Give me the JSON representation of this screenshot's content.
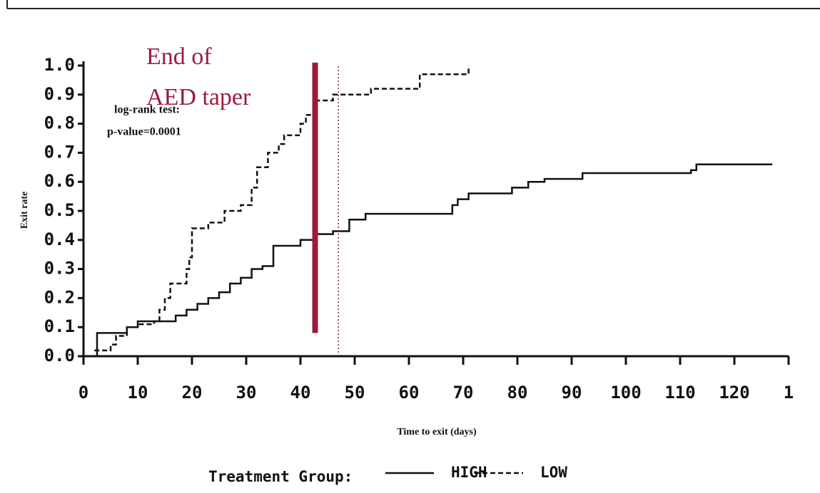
{
  "chart_data": {
    "type": "step",
    "y_label": "Exit rate",
    "x_label": "Time to exit (days)",
    "legend_title": "Treatment Group:",
    "xlim": [
      0,
      130
    ],
    "ylim": [
      0,
      1
    ],
    "xticks": [
      0,
      10,
      20,
      30,
      40,
      50,
      60,
      70,
      80,
      90,
      100,
      110,
      120,
      {
        "value": 130,
        "label": "1"
      }
    ],
    "yticks": [
      {
        "value": 0,
        "label": "0.0"
      },
      0.1,
      0.2,
      0.3,
      0.4,
      0.5,
      0.6,
      0.7,
      0.8,
      0.9,
      {
        "value": 1,
        "label": "1.0"
      }
    ],
    "annotations": [
      "log-rank test:",
      "p-value=0.0001"
    ],
    "marker_label": [
      "End of",
      "AED taper"
    ],
    "vlines": [
      {
        "x": 42.7,
        "y": [
          0.08,
          1.01
        ],
        "color": "#9b1b3e",
        "style": "solid"
      },
      {
        "x": 47,
        "y": [
          0.0,
          1.0
        ],
        "color": "#9b1b3e",
        "style": "dotted"
      }
    ],
    "series": [
      {
        "name": "HIGH",
        "color": "#111111",
        "style": "solid",
        "x": [
          2,
          2.5,
          8,
          10,
          17,
          19,
          21,
          23,
          25,
          27,
          29,
          31,
          33,
          35,
          40,
          43,
          46,
          49,
          52,
          68,
          69,
          71,
          79,
          82,
          85,
          92,
          112,
          113,
          127
        ],
        "values": [
          0.0,
          0.08,
          0.1,
          0.12,
          0.14,
          0.16,
          0.18,
          0.2,
          0.22,
          0.25,
          0.27,
          0.3,
          0.31,
          0.38,
          0.4,
          0.42,
          0.43,
          0.47,
          0.49,
          0.52,
          0.54,
          0.56,
          0.58,
          0.6,
          0.61,
          0.63,
          0.64,
          0.66,
          0.66
        ]
      },
      {
        "name": "LOW",
        "color": "#111111",
        "style": "dashed",
        "x": [
          2,
          5,
          6,
          8,
          10,
          13,
          14,
          15,
          16,
          19,
          19.5,
          20,
          23,
          26,
          29,
          31,
          32,
          34,
          36,
          37,
          40,
          41,
          43,
          46,
          53,
          62,
          71
        ],
        "values": [
          0.02,
          0.04,
          0.07,
          0.1,
          0.11,
          0.12,
          0.16,
          0.2,
          0.25,
          0.3,
          0.34,
          0.44,
          0.46,
          0.5,
          0.52,
          0.58,
          0.65,
          0.7,
          0.73,
          0.76,
          0.8,
          0.83,
          0.88,
          0.9,
          0.92,
          0.97,
          1.0
        ]
      }
    ]
  }
}
